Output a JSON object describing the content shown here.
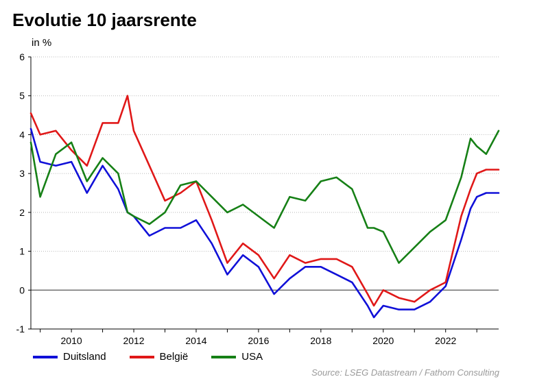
{
  "title": "Evolutie 10 jaarsrente",
  "unit_label": "in %",
  "source": "Source: LSEG Datastream / Fathom Consulting",
  "colors": {
    "Duitsland": "#1010d8",
    "België": "#e01818",
    "USA": "#168016",
    "grid": "#b8b8b8",
    "zero": "#555555"
  },
  "chart_data": {
    "type": "line",
    "title": "Evolutie 10 jaarsrente",
    "ylabel": "in %",
    "xlabel": "",
    "xlim": [
      2008.7,
      2023.7
    ],
    "ylim": [
      -1,
      6
    ],
    "x_ticks": [
      2010,
      2012,
      2014,
      2016,
      2018,
      2020,
      2022
    ],
    "y_ticks": [
      -1,
      0,
      1,
      2,
      3,
      4,
      5,
      6
    ],
    "grid": "horizontal dotted",
    "legend": "bottom-left",
    "x": [
      2008.7,
      2009.0,
      2009.5,
      2010.0,
      2010.5,
      2011.0,
      2011.5,
      2011.8,
      2012.0,
      2012.5,
      2013.0,
      2013.5,
      2014.0,
      2014.5,
      2015.0,
      2015.5,
      2016.0,
      2016.5,
      2017.0,
      2017.5,
      2018.0,
      2018.5,
      2019.0,
      2019.5,
      2019.7,
      2020.0,
      2020.5,
      2021.0,
      2021.5,
      2022.0,
      2022.5,
      2022.8,
      2023.0,
      2023.3,
      2023.7
    ],
    "series": [
      {
        "name": "Duitsland",
        "values": [
          4.15,
          3.3,
          3.2,
          3.3,
          2.5,
          3.2,
          2.6,
          2.0,
          1.9,
          1.4,
          1.6,
          1.6,
          1.8,
          1.2,
          0.4,
          0.9,
          0.6,
          -0.1,
          0.3,
          0.6,
          0.6,
          0.4,
          0.2,
          -0.4,
          -0.7,
          -0.4,
          -0.5,
          -0.5,
          -0.3,
          0.1,
          1.3,
          2.1,
          2.4,
          2.5,
          2.5
        ]
      },
      {
        "name": "België",
        "values": [
          4.55,
          4.0,
          4.1,
          3.6,
          3.2,
          4.3,
          4.3,
          5.0,
          4.1,
          3.2,
          2.3,
          2.5,
          2.8,
          1.8,
          0.7,
          1.2,
          0.9,
          0.3,
          0.9,
          0.7,
          0.8,
          0.8,
          0.6,
          -0.1,
          -0.4,
          0.0,
          -0.2,
          -0.3,
          0.0,
          0.2,
          1.9,
          2.6,
          3.0,
          3.1,
          3.1
        ]
      },
      {
        "name": "USA",
        "values": [
          3.8,
          2.4,
          3.5,
          3.8,
          2.8,
          3.4,
          3.0,
          2.0,
          1.9,
          1.7,
          2.0,
          2.7,
          2.8,
          2.4,
          2.0,
          2.2,
          1.9,
          1.6,
          2.4,
          2.3,
          2.8,
          2.9,
          2.6,
          1.6,
          1.6,
          1.5,
          0.7,
          1.1,
          1.5,
          1.8,
          2.9,
          3.9,
          3.7,
          3.5,
          4.1
        ]
      }
    ]
  }
}
